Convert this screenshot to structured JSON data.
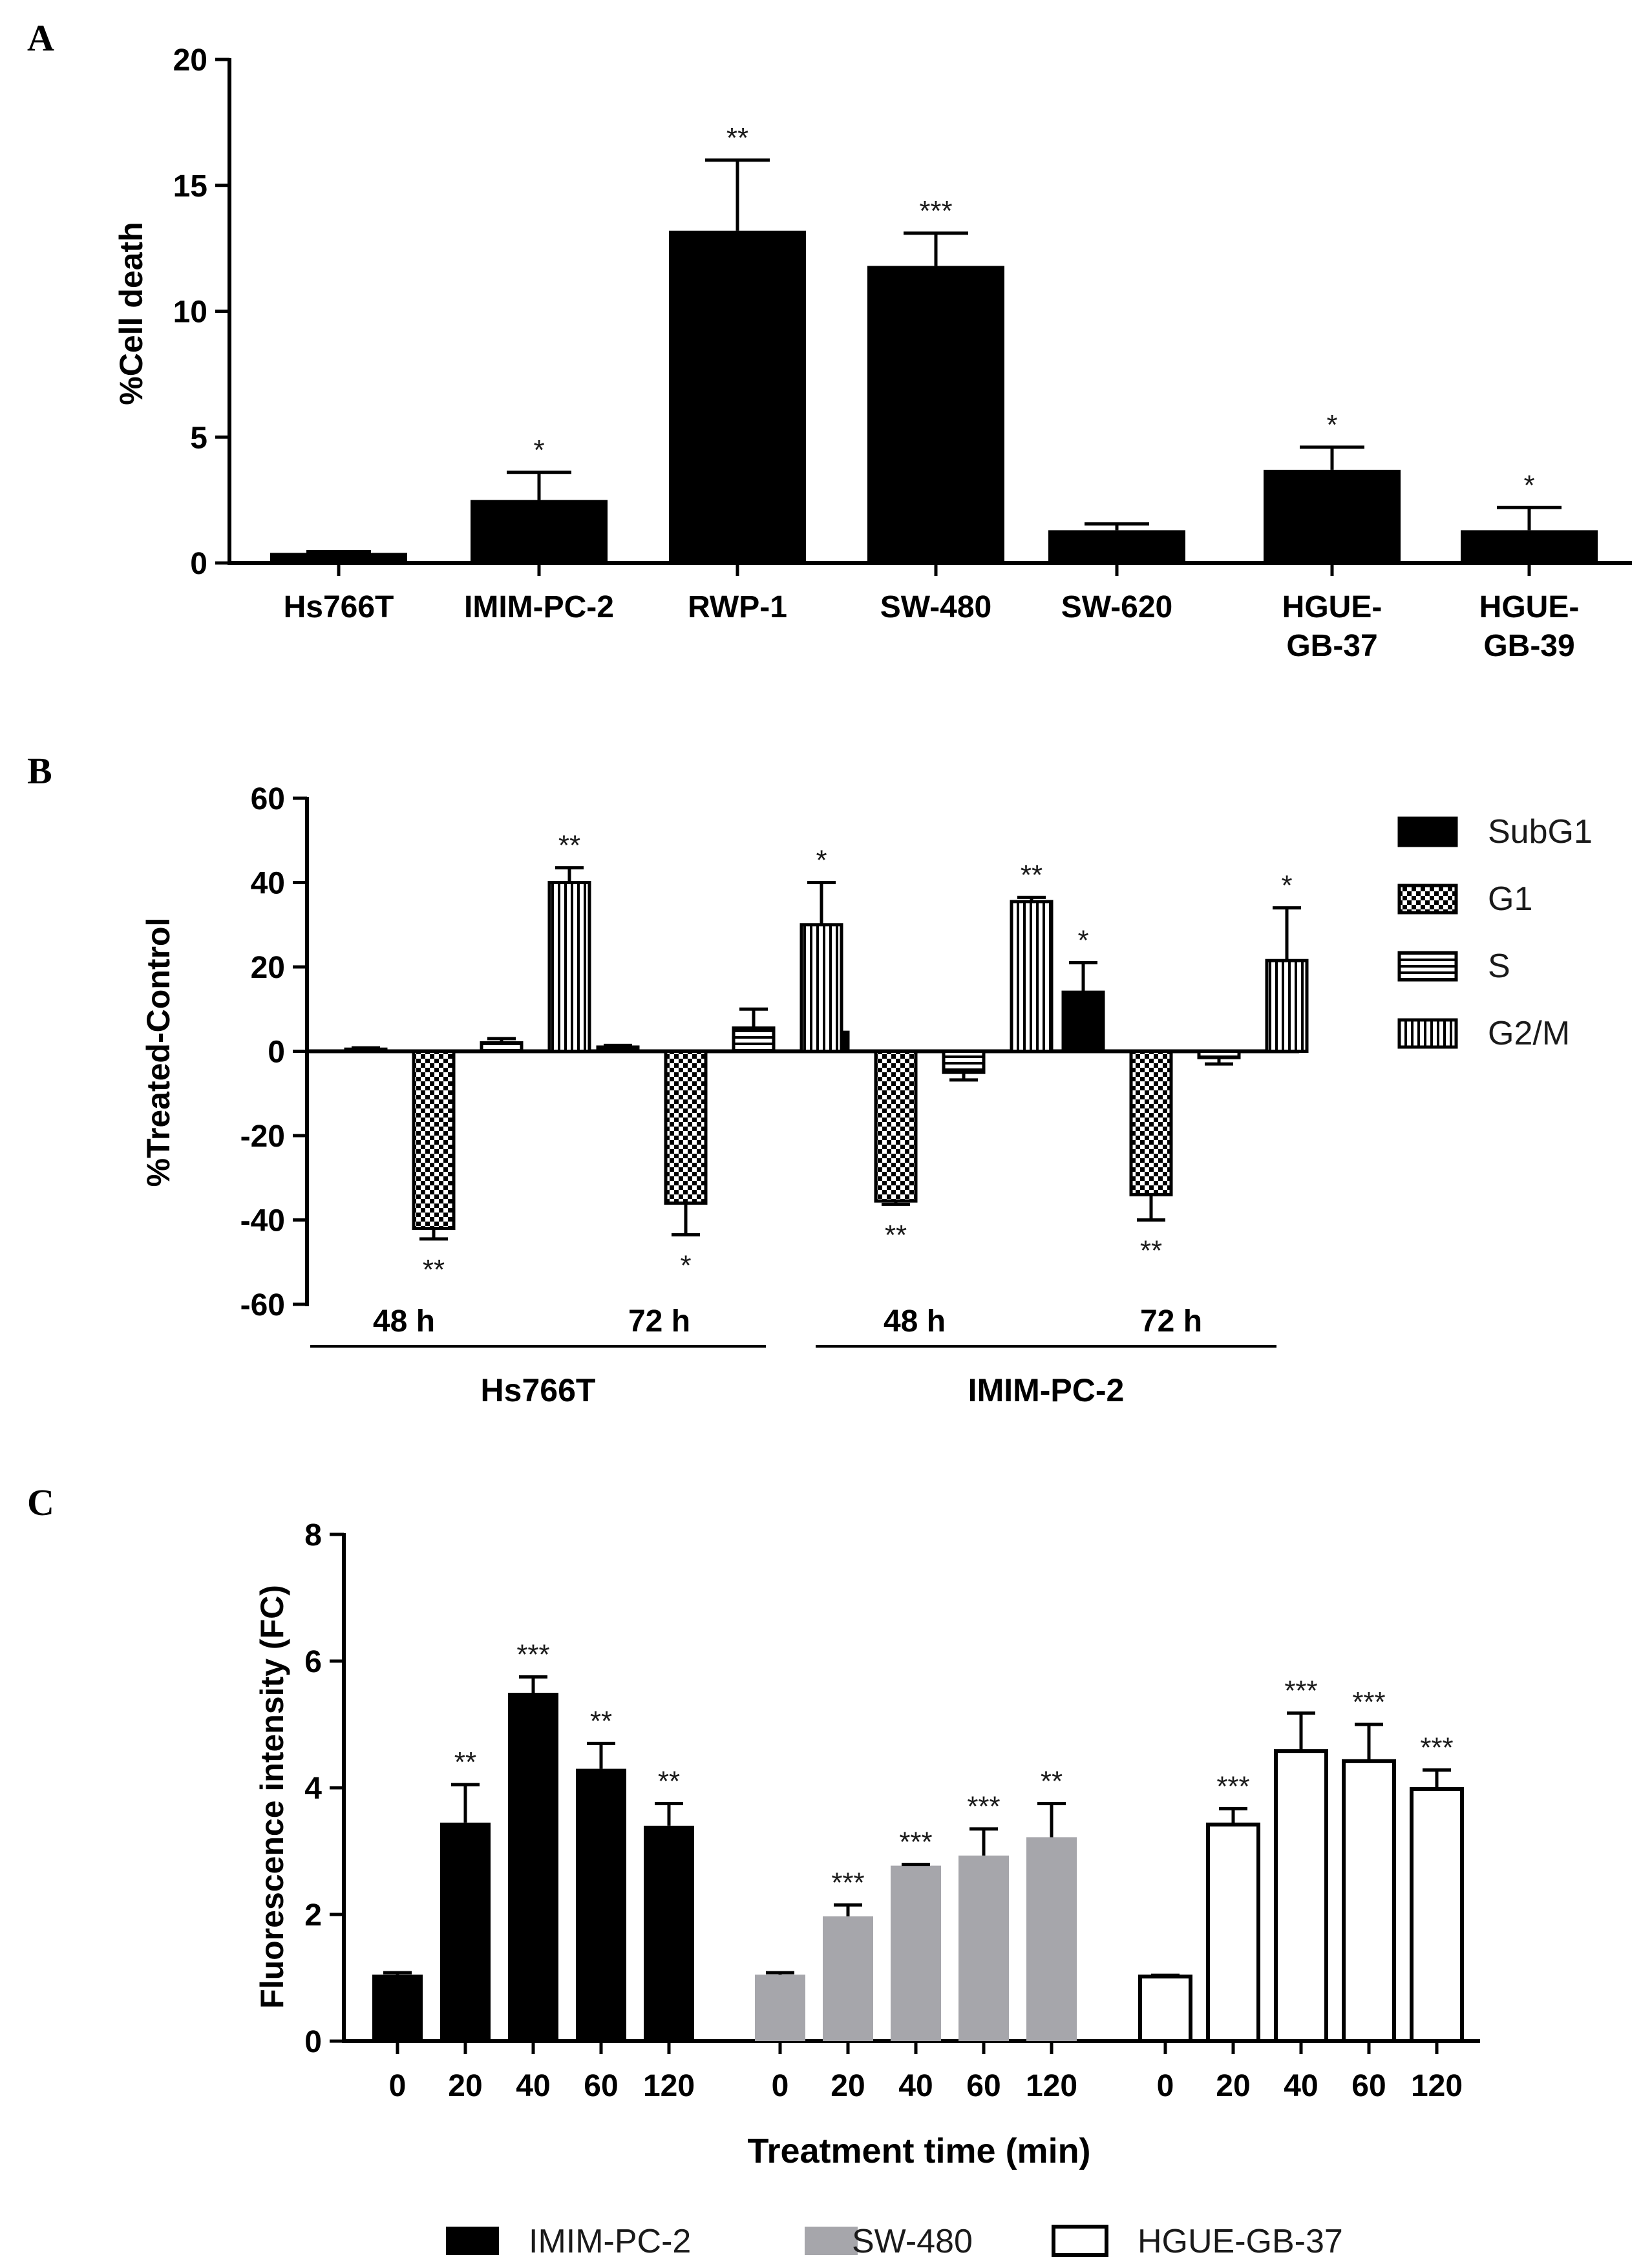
{
  "panels": [
    {
      "letter": "A"
    },
    {
      "letter": "B"
    },
    {
      "letter": "C"
    }
  ],
  "chart_data": [
    {
      "id": "A",
      "type": "bar",
      "title": "",
      "xlabel": "",
      "ylabel": "%Cell death",
      "ylim": [
        0,
        20
      ],
      "yticks": [
        0,
        5,
        10,
        15,
        20
      ],
      "grid": false,
      "categories": [
        "Hs766T",
        "IMIM-PC-2",
        "RWP-1",
        "SW-480",
        "SW-620",
        "HGUE-GB-37",
        "HGUE-GB-39"
      ],
      "category_lines": [
        [
          "Hs766T"
        ],
        [
          "IMIM-PC-2"
        ],
        [
          "RWP-1"
        ],
        [
          "SW-480"
        ],
        [
          "SW-620"
        ],
        [
          "HGUE-",
          "GB-37"
        ],
        [
          "HGUE-",
          "GB-39"
        ]
      ],
      "values": [
        0.4,
        2.5,
        13.2,
        11.8,
        1.3,
        3.7,
        1.3
      ],
      "errors": [
        0.05,
        1.1,
        2.8,
        1.3,
        0.25,
        0.9,
        0.9
      ],
      "significance": [
        "",
        "*",
        "**",
        "***",
        "",
        "*",
        "*"
      ],
      "colors": {
        "bar": "#000000"
      }
    },
    {
      "id": "B",
      "type": "bar",
      "title": "",
      "xlabel": "",
      "ylabel": "%Treated-Control",
      "ylim": [
        -60,
        60
      ],
      "yticks": [
        -60,
        -40,
        -20,
        0,
        20,
        40,
        60
      ],
      "grid": false,
      "legend_position": "right",
      "groups": [
        {
          "cell_line": "Hs766T",
          "timepoints": [
            "48 h",
            "72 h"
          ]
        },
        {
          "cell_line": "IMIM-PC-2",
          "timepoints": [
            "48 h",
            "72 h"
          ]
        }
      ],
      "series": [
        {
          "name": "SubG1",
          "pattern": "solid",
          "values": [
            0.5,
            1.0,
            4.5,
            14.0
          ],
          "errors": [
            0.3,
            0.4,
            0.8,
            7.0
          ],
          "significance": [
            "",
            "",
            "",
            "*"
          ]
        },
        {
          "name": "G1",
          "pattern": "checker",
          "values": [
            -42,
            -36,
            -35.5,
            -34
          ],
          "errors": [
            2.5,
            7.5,
            0.8,
            6.0
          ],
          "significance": [
            "**",
            "*",
            "**",
            "**"
          ]
        },
        {
          "name": "S",
          "pattern": "horizontal",
          "values": [
            2.0,
            5.5,
            -5.0,
            -1.5
          ],
          "errors": [
            1.0,
            4.5,
            1.8,
            1.5
          ],
          "significance": [
            "",
            "",
            "",
            ""
          ]
        },
        {
          "name": "G2/M",
          "pattern": "vertical",
          "values": [
            40,
            30,
            35.5,
            21.5
          ],
          "errors": [
            3.5,
            10,
            1.0,
            12.5
          ],
          "significance": [
            "**",
            "*",
            "**",
            "*"
          ]
        }
      ]
    },
    {
      "id": "C",
      "type": "bar",
      "title": "",
      "xlabel": "Treatment time (min)",
      "ylabel": "Fluorescence intensity (FC)",
      "ylim": [
        0,
        8
      ],
      "yticks": [
        0,
        2,
        4,
        6,
        8
      ],
      "grid": false,
      "legend_position": "bottom",
      "categories": [
        "0",
        "20",
        "40",
        "60",
        "120"
      ],
      "series": [
        {
          "name": "IMIM-PC-2",
          "style": "black",
          "values": [
            1.05,
            3.45,
            5.5,
            4.3,
            3.4
          ],
          "errors": [
            0.03,
            0.6,
            0.25,
            0.4,
            0.35
          ],
          "significance": [
            "",
            "**",
            "***",
            "**",
            "**"
          ]
        },
        {
          "name": "SW-480",
          "style": "gray",
          "values": [
            1.05,
            1.97,
            2.77,
            2.93,
            3.22
          ],
          "errors": [
            0.03,
            0.18,
            0.02,
            0.42,
            0.53
          ],
          "significance": [
            "",
            "***",
            "***",
            "***",
            "**"
          ]
        },
        {
          "name": "HGUE-GB-37",
          "style": "white",
          "values": [
            1.02,
            3.42,
            4.58,
            4.42,
            3.98
          ],
          "errors": [
            0.02,
            0.25,
            0.6,
            0.58,
            0.3
          ],
          "significance": [
            "",
            "***",
            "***",
            "***",
            "***"
          ]
        }
      ],
      "colors": {
        "black": "#000000",
        "gray": "#a6a6ab",
        "white": "#ffffff"
      }
    }
  ]
}
